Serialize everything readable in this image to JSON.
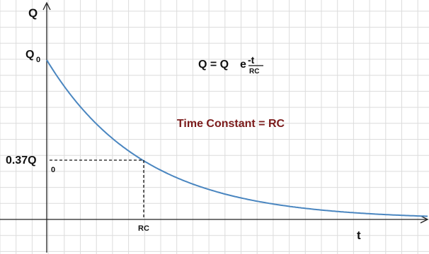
{
  "y_axis_label": "Q",
  "x_axis_label": "t",
  "initial_charge": {
    "main": "Q",
    "sub": "0"
  },
  "formula": {
    "lhs": "Q = Q",
    "base": "e",
    "numerator": "-t",
    "denominator": "RC"
  },
  "annotation": "Time Constant = RC",
  "level_label": {
    "main": "0.37Q",
    "sub": "0"
  },
  "time_constant_label": "RC"
}
